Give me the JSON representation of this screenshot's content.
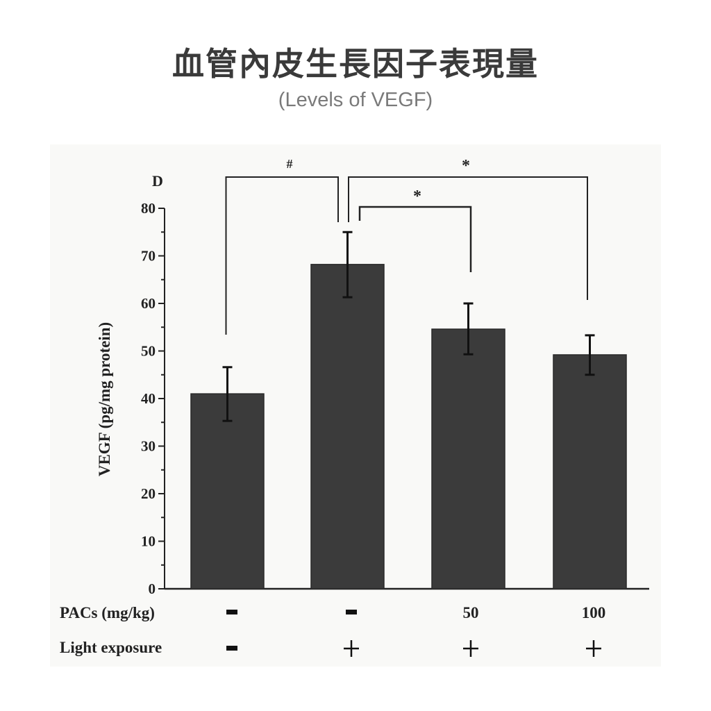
{
  "header": {
    "title": "血管內皮生長因子表現量",
    "subtitle": "(Levels of VEGF)"
  },
  "figure": {
    "panel_label": "D",
    "row_labels": [
      "PACs (mg/kg)",
      "Light exposure"
    ],
    "pacs_values": [
      "-",
      "-",
      "50",
      "100"
    ],
    "light_values": [
      "-",
      "+",
      "+",
      "+"
    ],
    "significance": [
      {
        "label": "#",
        "from": 0,
        "to": 1
      },
      {
        "label": "*",
        "from": 1,
        "to": 2
      },
      {
        "label": "*",
        "from": 1,
        "to": 3
      }
    ],
    "colors": {
      "bar": "#3b3b3b",
      "axis": "#222222",
      "background": "#f9f9f7"
    }
  },
  "chart_data": {
    "type": "bar",
    "title": "血管內皮生長因子表現量 (Levels of VEGF)",
    "panel": "D",
    "categories": [
      "PACs -, Light -",
      "PACs -, Light +",
      "PACs 50, Light +",
      "PACs 100, Light +"
    ],
    "values": [
      41.0,
      68.2,
      54.6,
      49.2
    ],
    "error_upper": [
      46.6,
      75.0,
      60.0,
      53.3
    ],
    "error_lower": [
      35.3,
      61.3,
      49.3,
      45.0
    ],
    "xlabel": "",
    "ylabel": "VEGF (pg/mg protein)",
    "ylim": [
      0,
      80
    ],
    "yticks": [
      0,
      10,
      20,
      30,
      40,
      50,
      60,
      70,
      80
    ],
    "grid": false,
    "legend": null,
    "annotations": [
      {
        "text": "#",
        "between": [
          "PACs -, Light -",
          "PACs -, Light +"
        ]
      },
      {
        "text": "*",
        "between": [
          "PACs -, Light +",
          "PACs 50, Light +"
        ]
      },
      {
        "text": "*",
        "between": [
          "PACs -, Light +",
          "PACs 100, Light +"
        ]
      }
    ],
    "x_conditions": {
      "PACs (mg/kg)": [
        "-",
        "-",
        "50",
        "100"
      ],
      "Light exposure": [
        "-",
        "+",
        "+",
        "+"
      ]
    }
  }
}
